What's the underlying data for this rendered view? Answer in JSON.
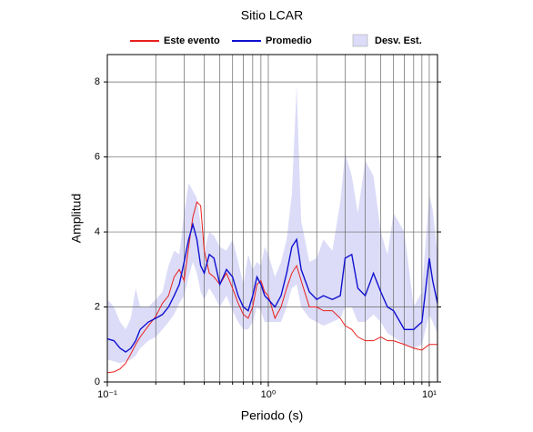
{
  "chart_data": {
    "type": "line",
    "title": "Sitio LCAR",
    "x_label": "Periodo (s)",
    "y_label": "Amplitud",
    "x_scale": "log",
    "xlim": [
      0.1,
      11.25
    ],
    "ylim": [
      0,
      8.73
    ],
    "xticks": [
      {
        "value": 0.1,
        "label": "10⁻¹"
      },
      {
        "value": 1,
        "label": "10⁰"
      },
      {
        "value": 10,
        "label": "10¹"
      }
    ],
    "x_minor_ticks": [
      0.2,
      0.3,
      0.4,
      0.5,
      0.6,
      0.7,
      0.8,
      0.9,
      2,
      3,
      4,
      5,
      6,
      7,
      8,
      9
    ],
    "yticks": [
      0,
      2,
      4,
      6,
      8
    ],
    "grid": true,
    "legend_position": "top",
    "x": [
      0.1,
      0.11,
      0.12,
      0.13,
      0.14,
      0.15,
      0.16,
      0.18,
      0.2,
      0.22,
      0.24,
      0.26,
      0.28,
      0.3,
      0.32,
      0.34,
      0.36,
      0.38,
      0.4,
      0.43,
      0.46,
      0.5,
      0.55,
      0.6,
      0.65,
      0.7,
      0.75,
      0.8,
      0.85,
      0.9,
      0.95,
      1.0,
      1.1,
      1.2,
      1.3,
      1.4,
      1.5,
      1.6,
      1.8,
      2.0,
      2.2,
      2.5,
      2.8,
      3.0,
      3.3,
      3.6,
      4.0,
      4.5,
      5.0,
      5.5,
      6.0,
      7.0,
      8.0,
      9.0,
      10,
      10.5,
      11.25
    ],
    "band": {
      "name": "Desv. Est.",
      "color": "#dcdcf8",
      "lower": [
        0.6,
        0.55,
        0.5,
        0.55,
        0.6,
        0.7,
        0.9,
        1.1,
        1.2,
        1.4,
        1.6,
        1.8,
        2.1,
        2.3,
        2.8,
        3.2,
        2.9,
        2.4,
        2.2,
        2.5,
        2.3,
        2.0,
        2.3,
        1.9,
        1.6,
        1.4,
        1.4,
        1.6,
        2.0,
        1.9,
        1.6,
        1.6,
        1.6,
        1.6,
        2.0,
        2.5,
        2.6,
        2.0,
        1.7,
        1.6,
        1.5,
        1.6,
        1.7,
        2.0,
        2.0,
        1.6,
        1.6,
        1.8,
        1.6,
        1.3,
        1.2,
        1.0,
        0.9,
        1.0,
        1.8,
        1.6,
        1.3
      ],
      "upper": [
        2.2,
        2.0,
        1.6,
        1.4,
        1.7,
        2.5,
        2.0,
        2.0,
        2.2,
        2.4,
        3.1,
        3.5,
        3.4,
        4.5,
        5.3,
        5.1,
        4.9,
        4.2,
        3.5,
        4.0,
        3.9,
        3.6,
        3.5,
        3.8,
        3.2,
        2.6,
        3.4,
        3.0,
        3.2,
        3.1,
        3.6,
        3.4,
        2.8,
        3.2,
        3.8,
        5.0,
        7.9,
        4.3,
        3.2,
        3.3,
        3.8,
        3.5,
        4.8,
        6.1,
        5.5,
        4.5,
        5.9,
        5.5,
        4.0,
        3.4,
        4.5,
        4.0,
        2.0,
        2.4,
        5.0,
        4.6,
        3.4
      ]
    },
    "series": [
      {
        "name": "Este evento",
        "color": "#e8201e",
        "values": [
          0.25,
          0.27,
          0.35,
          0.5,
          0.75,
          1.0,
          1.2,
          1.5,
          1.75,
          2.1,
          2.3,
          2.8,
          3.0,
          2.7,
          3.6,
          4.4,
          4.8,
          4.7,
          3.5,
          2.9,
          2.8,
          2.6,
          2.9,
          2.5,
          2.1,
          1.8,
          1.7,
          2.0,
          2.6,
          2.7,
          2.4,
          2.3,
          1.7,
          2.0,
          2.5,
          2.9,
          3.1,
          2.7,
          2.0,
          2.0,
          1.9,
          1.9,
          1.7,
          1.5,
          1.4,
          1.2,
          1.1,
          1.1,
          1.2,
          1.1,
          1.1,
          1.0,
          0.9,
          0.85,
          1.0,
          1.0,
          1.0
        ]
      },
      {
        "name": "Promedio",
        "color": "#1010d0",
        "values": [
          1.15,
          1.1,
          0.9,
          0.8,
          0.9,
          1.1,
          1.4,
          1.6,
          1.7,
          1.8,
          2.0,
          2.3,
          2.6,
          3.2,
          3.8,
          4.2,
          3.8,
          3.1,
          2.9,
          3.4,
          3.3,
          2.6,
          3.0,
          2.8,
          2.3,
          2.0,
          1.9,
          2.3,
          2.8,
          2.6,
          2.3,
          2.2,
          2.0,
          2.3,
          2.9,
          3.6,
          3.8,
          3.0,
          2.4,
          2.2,
          2.3,
          2.2,
          2.3,
          3.3,
          3.4,
          2.5,
          2.3,
          2.9,
          2.4,
          2.0,
          1.9,
          1.4,
          1.4,
          1.6,
          3.3,
          2.7,
          2.1
        ]
      }
    ]
  }
}
